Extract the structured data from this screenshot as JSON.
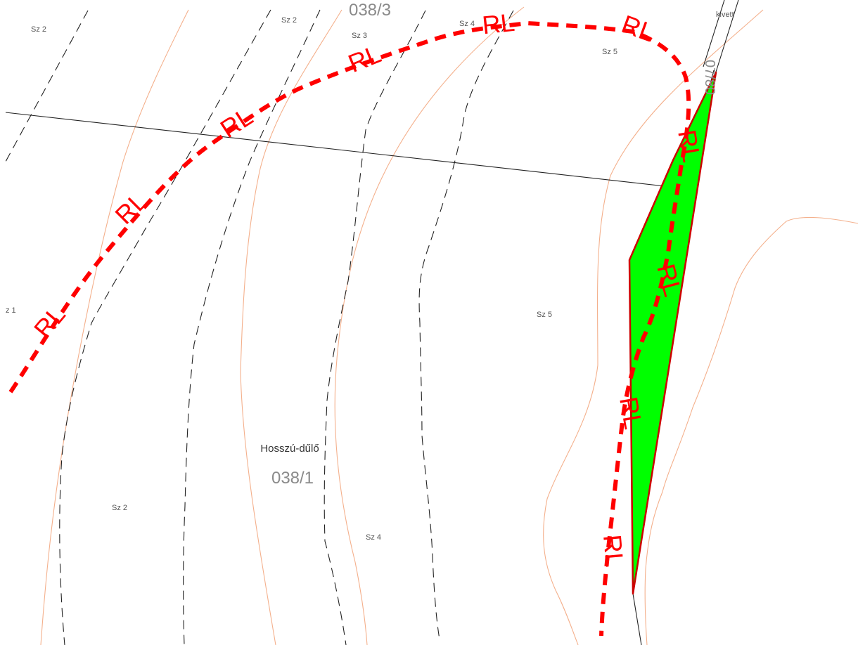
{
  "map": {
    "locality_name": "Hosszú-dűlő",
    "parcel_numbers": {
      "main": "038/1",
      "top": "038/3",
      "right_vertical": "07/80"
    },
    "corner_label": "kivett",
    "zone_labels": {
      "sz2_top_left": "Sz 2",
      "sz2_top": "Sz 2",
      "sz3_top": "Sz 3",
      "sz4_top": "Sz 4",
      "sz5_top": "Sz 5",
      "sz1_left": "z 1",
      "sz5_mid": "Sz 5",
      "sz2_bottom": "Sz 2",
      "sz4_bottom": "Sz 4"
    },
    "route_label": "RL",
    "colors": {
      "route_line": "#ff0000",
      "highlight_area_fill": "#00ff00",
      "highlight_area_outline": "#cc0000",
      "contour_lines": "#f4b08c",
      "soil_boundaries": "#222222"
    }
  }
}
